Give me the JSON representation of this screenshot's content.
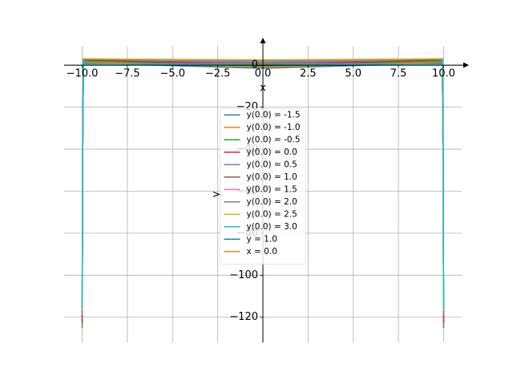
{
  "chart_data": {
    "type": "line",
    "xlabel": "x",
    "ylabel": "y",
    "xlim": [
      -11,
      11
    ],
    "ylim": [
      -132,
      9
    ],
    "xticks": [
      {
        "value": -10,
        "label": "−10.0"
      },
      {
        "value": -7.5,
        "label": "−7.5"
      },
      {
        "value": -5,
        "label": "−5.0"
      },
      {
        "value": -2.5,
        "label": "−2.5"
      },
      {
        "value": 0,
        "label": "0.0"
      },
      {
        "value": 2.5,
        "label": "2.5"
      },
      {
        "value": 5,
        "label": "5.0"
      },
      {
        "value": 7.5,
        "label": "7.5"
      },
      {
        "value": 10,
        "label": "10.0"
      }
    ],
    "yticks": [
      {
        "value": -120,
        "label": "−120"
      },
      {
        "value": -100,
        "label": "−100"
      },
      {
        "value": -80,
        "label": "−80"
      },
      {
        "value": -60,
        "label": "−60"
      },
      {
        "value": -40,
        "label": "−40"
      },
      {
        "value": -20,
        "label": "−20"
      },
      0
    ],
    "grid": true,
    "legend": "center",
    "series": [
      {
        "name": "y(0.0) = -1.5",
        "color": "#1f77b4",
        "x": [
          -10,
          -9.97,
          -9.93,
          0,
          9.93,
          9.97,
          10
        ],
        "values": [
          -125,
          -40,
          1,
          -1.5,
          1,
          -40,
          -125
        ]
      },
      {
        "name": "y(0.0) = -1.0",
        "color": "#ff7f0e",
        "x": [
          -10,
          -9.97,
          -9.93,
          0,
          9.93,
          9.97,
          10
        ],
        "values": [
          -124,
          -40,
          1.5,
          -1,
          1.5,
          -40,
          -124
        ]
      },
      {
        "name": "y(0.0) = -0.5",
        "color": "#2ca02c",
        "x": [
          -10,
          -9.97,
          -9.93,
          0,
          9.93,
          9.97,
          10
        ],
        "values": [
          -123,
          -40,
          2,
          -0.5,
          2,
          -40,
          -123
        ]
      },
      {
        "name": "y(0.0) = 0.0",
        "color": "#d62728",
        "x": [
          -10,
          -9.97,
          -9.93,
          0,
          9.93,
          9.97,
          10
        ],
        "values": [
          -122,
          -40,
          2.5,
          0,
          2.5,
          -40,
          -122
        ]
      },
      {
        "name": "y(0.0) = 0.5",
        "color": "#9467bd",
        "x": [
          -10,
          -9.97,
          -9.93,
          0,
          9.93,
          9.97,
          10
        ],
        "values": [
          -121,
          -40,
          3,
          0.5,
          3,
          -40,
          -121
        ]
      },
      {
        "name": "y(0.0) = 1.0",
        "color": "#8c564b",
        "x": [
          -10,
          -9.97,
          -9.93,
          0,
          9.93,
          9.97,
          10
        ],
        "values": [
          -120,
          -40,
          3,
          1,
          3,
          -40,
          -120
        ]
      },
      {
        "name": "y(0.0) = 1.5",
        "color": "#e377c2",
        "x": [
          -10,
          -9.97,
          -9.93,
          0,
          9.93,
          9.97,
          10
        ],
        "values": [
          -119,
          -40,
          3,
          1.5,
          3,
          -40,
          -119
        ]
      },
      {
        "name": "y(0.0) = 2.0",
        "color": "#7f7f7f",
        "x": [
          -10,
          -9.97,
          -9.93,
          0,
          9.93,
          9.97,
          10
        ],
        "values": [
          -118,
          -40,
          3,
          2,
          3,
          -40,
          -118
        ]
      },
      {
        "name": "y(0.0) = 2.5",
        "color": "#bcbd22",
        "x": [
          -10,
          -9.97,
          -9.93,
          0,
          9.93,
          9.97,
          10
        ],
        "values": [
          -117,
          -40,
          3,
          2.5,
          3,
          -40,
          -117
        ]
      },
      {
        "name": "y(0.0) = 3.0",
        "color": "#17becf",
        "x": [
          -10,
          -9.97,
          -9.93,
          -9.9,
          9.9,
          9.93,
          9.97,
          10
        ],
        "values": [
          -116,
          -40,
          3,
          0.5,
          0.5,
          3,
          -40,
          -116
        ]
      },
      {
        "name": "y = 1.0",
        "color": "#1f77b4",
        "x": [],
        "values": []
      },
      {
        "name": "x = 0.0",
        "color": "#ff7f0e",
        "x": [],
        "values": []
      }
    ]
  }
}
